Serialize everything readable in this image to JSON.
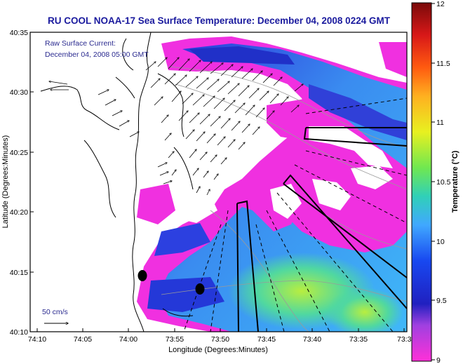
{
  "title": "RU COOL  NOAA-17  Sea Surface Temperature:  December 04, 2008 0224 GMT",
  "overlay": {
    "line1": "Raw Surface Current:",
    "line2": "December 04, 2008 05:00 GMT"
  },
  "axes": {
    "xlabel": "Longitude (Degrees:Minutes)",
    "ylabel": "Latitude (Degrees:Minutes)",
    "xticks": [
      "74:10",
      "74:05",
      "74:00",
      "73:55",
      "73:50",
      "73:45",
      "73:40",
      "73:35",
      "73:3"
    ],
    "yticks": [
      "40:35",
      "40:30",
      "40:25",
      "40:20",
      "40:15",
      "40:10"
    ]
  },
  "scale": {
    "label": "50 cm/s"
  },
  "colorbar": {
    "label": "Temperature (°C)",
    "ticks": [
      "12",
      "11.5",
      "11",
      "10.5",
      "10",
      "9.5",
      "9"
    ],
    "colors": [
      "#7a0a0a",
      "#d81818",
      "#ff5a10",
      "#ffb020",
      "#e8f020",
      "#70e850",
      "#30d0b8",
      "#40a8ff",
      "#1840e8",
      "#2020c0",
      "#7a30d8",
      "#e040e0",
      "#ff30d8"
    ]
  }
}
